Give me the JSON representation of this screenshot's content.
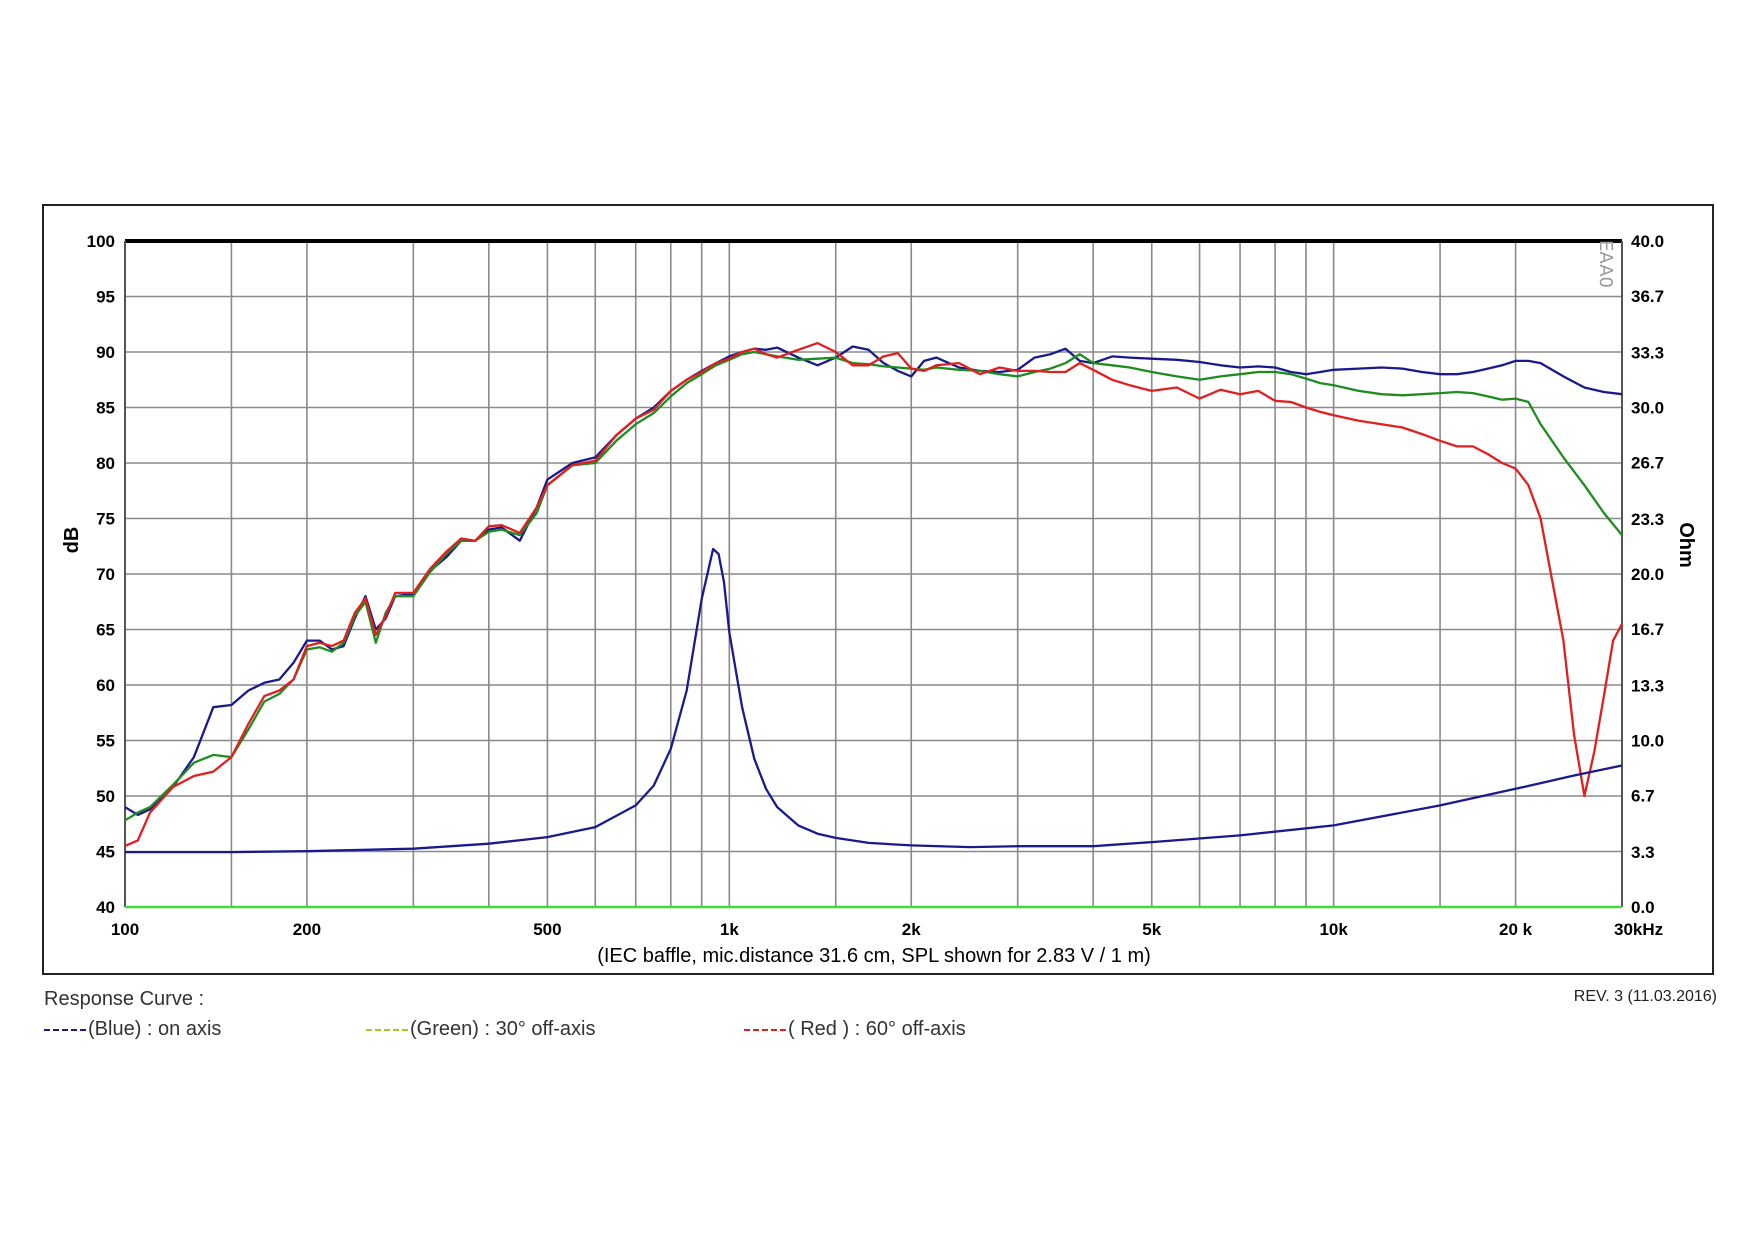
{
  "chart_data": {
    "type": "line",
    "x_scale": "log",
    "xlim": [
      100,
      30000
    ],
    "ylim": [
      40,
      100
    ],
    "y2lim": [
      0,
      40
    ],
    "ylabel": "dB",
    "y2label": "Ohm",
    "xlabel": "(IEC baffle, mic.distance 31.6 cm, SPL shown for 2.83 V / 1 m)",
    "watermark": "EAA0",
    "grid": true,
    "y_ticks": [
      "40",
      "45",
      "50",
      "55",
      "60",
      "65",
      "70",
      "75",
      "80",
      "85",
      "90",
      "95",
      "100"
    ],
    "y2_ticks": [
      "0.0",
      "3.3",
      "6.7",
      "10.0",
      "13.3",
      "16.7",
      "20.0",
      "23.3",
      "26.7",
      "30.0",
      "33.3",
      "36.7",
      "40.0"
    ],
    "x_ticks": [
      {
        "value": 100,
        "label": "100"
      },
      {
        "value": 200,
        "label": "200"
      },
      {
        "value": 500,
        "label": "500"
      },
      {
        "value": 1000,
        "label": "1k"
      },
      {
        "value": 2000,
        "label": "2k"
      },
      {
        "value": 5000,
        "label": "5k"
      },
      {
        "value": 10000,
        "label": "10k"
      },
      {
        "value": 20000,
        "label": "20 k"
      },
      {
        "value": 30000,
        "label": "30kHz"
      }
    ],
    "x_gridlines": [
      100,
      150,
      200,
      300,
      400,
      500,
      600,
      700,
      800,
      900,
      1000,
      1500,
      2000,
      3000,
      4000,
      5000,
      6000,
      7000,
      8000,
      9000,
      10000,
      15000,
      20000,
      30000
    ],
    "series": [
      {
        "name": "(Blue)  : on axis",
        "color": "#1a1a8c",
        "axis": "left",
        "x": [
          100,
          105,
          110,
          120,
          130,
          140,
          150,
          160,
          170,
          180,
          190,
          200,
          210,
          220,
          230,
          240,
          250,
          260,
          270,
          280,
          300,
          320,
          340,
          360,
          380,
          400,
          420,
          450,
          480,
          500,
          550,
          600,
          650,
          700,
          750,
          800,
          850,
          900,
          950,
          1000,
          1050,
          1100,
          1150,
          1200,
          1300,
          1400,
          1500,
          1600,
          1700,
          1800,
          1900,
          2000,
          2100,
          2200,
          2400,
          2600,
          2800,
          3000,
          3200,
          3400,
          3600,
          3800,
          4000,
          4300,
          4600,
          5000,
          5500,
          6000,
          6500,
          7000,
          7500,
          8000,
          8500,
          9000,
          9500,
          10000,
          11000,
          12000,
          13000,
          14000,
          15000,
          16000,
          17000,
          18000,
          19000,
          20000,
          21000,
          22000,
          24000,
          26000,
          28000,
          30000
        ],
        "values": [
          49.0,
          48.3,
          48.8,
          50.8,
          53.5,
          58.0,
          58.2,
          59.5,
          60.2,
          60.5,
          62.0,
          64.0,
          64.0,
          63.2,
          63.5,
          66.0,
          68.0,
          65.0,
          66.0,
          68.0,
          68.2,
          70.3,
          71.5,
          73.0,
          73.0,
          74.0,
          74.2,
          73.0,
          76.0,
          78.5,
          80.0,
          80.5,
          82.5,
          84.0,
          85.0,
          86.5,
          87.5,
          88.3,
          89.0,
          89.6,
          90.0,
          90.3,
          90.2,
          90.4,
          89.5,
          88.8,
          89.5,
          90.5,
          90.2,
          89.0,
          88.3,
          87.8,
          89.2,
          89.5,
          88.6,
          88.3,
          88.2,
          88.4,
          89.5,
          89.8,
          90.3,
          89.2,
          89.0,
          89.6,
          89.5,
          89.4,
          89.3,
          89.1,
          88.8,
          88.6,
          88.7,
          88.6,
          88.2,
          88.0,
          88.2,
          88.4,
          88.5,
          88.6,
          88.5,
          88.2,
          88.0,
          88.0,
          88.2,
          88.5,
          88.8,
          89.2,
          89.2,
          89.0,
          87.8,
          86.8,
          86.4,
          86.2
        ]
      },
      {
        "name": "(Green) : 30° off-axis",
        "color": "#1f8c1f",
        "axis": "left",
        "x": [
          100,
          105,
          110,
          120,
          130,
          140,
          150,
          160,
          170,
          180,
          190,
          200,
          210,
          220,
          230,
          240,
          250,
          260,
          270,
          280,
          300,
          320,
          340,
          360,
          380,
          400,
          420,
          450,
          480,
          500,
          550,
          600,
          650,
          700,
          750,
          800,
          850,
          900,
          950,
          1000,
          1050,
          1100,
          1150,
          1200,
          1300,
          1400,
          1500,
          1600,
          1700,
          1800,
          1900,
          2000,
          2100,
          2200,
          2400,
          2600,
          2800,
          3000,
          3200,
          3400,
          3600,
          3800,
          4000,
          4300,
          4600,
          5000,
          5500,
          6000,
          6500,
          7000,
          7500,
          8000,
          8500,
          9000,
          9500,
          10000,
          11000,
          12000,
          13000,
          14000,
          15000,
          16000,
          17000,
          18000,
          19000,
          20000,
          21000,
          22000,
          24000,
          26000,
          28000,
          30000
        ],
        "values": [
          47.8,
          48.5,
          49.0,
          51.0,
          53.0,
          53.7,
          53.5,
          56.0,
          58.5,
          59.2,
          60.5,
          63.2,
          63.4,
          63.0,
          63.8,
          66.2,
          67.5,
          63.8,
          66.5,
          68.0,
          68.0,
          70.2,
          71.8,
          73.0,
          73.0,
          73.8,
          74.0,
          73.5,
          75.5,
          78.0,
          79.8,
          80.0,
          82.0,
          83.5,
          84.5,
          86.0,
          87.2,
          88.0,
          88.8,
          89.3,
          89.8,
          90.0,
          89.8,
          89.6,
          89.3,
          89.4,
          89.5,
          89.0,
          88.9,
          88.7,
          88.6,
          88.5,
          88.4,
          88.6,
          88.4,
          88.3,
          88.0,
          87.8,
          88.2,
          88.5,
          89.0,
          89.8,
          89.0,
          88.8,
          88.6,
          88.2,
          87.8,
          87.5,
          87.8,
          88.0,
          88.2,
          88.2,
          88.0,
          87.6,
          87.2,
          87.0,
          86.5,
          86.2,
          86.1,
          86.2,
          86.3,
          86.4,
          86.3,
          86.0,
          85.7,
          85.8,
          85.5,
          83.5,
          80.5,
          78.0,
          75.5,
          73.5
        ]
      },
      {
        "name": "( Red ) : 60° off-axis",
        "color": "#e02020",
        "axis": "left",
        "x": [
          100,
          105,
          110,
          120,
          130,
          140,
          150,
          160,
          170,
          180,
          190,
          200,
          210,
          220,
          230,
          240,
          250,
          260,
          270,
          280,
          300,
          320,
          340,
          360,
          380,
          400,
          420,
          450,
          480,
          500,
          550,
          600,
          650,
          700,
          750,
          800,
          850,
          900,
          950,
          1000,
          1050,
          1100,
          1150,
          1200,
          1300,
          1400,
          1500,
          1600,
          1700,
          1800,
          1900,
          2000,
          2100,
          2200,
          2400,
          2600,
          2800,
          3000,
          3200,
          3400,
          3600,
          3800,
          4000,
          4300,
          4600,
          5000,
          5500,
          6000,
          6500,
          7000,
          7500,
          8000,
          8500,
          9000,
          9500,
          10000,
          11000,
          12000,
          13000,
          14000,
          15000,
          16000,
          17000,
          18000,
          19000,
          20000,
          21000,
          22000,
          24000,
          25000,
          26000,
          27000,
          28000,
          29000,
          30000
        ],
        "values": [
          45.5,
          46.0,
          48.5,
          50.8,
          51.8,
          52.2,
          53.5,
          56.5,
          59.0,
          59.5,
          60.5,
          63.5,
          63.8,
          63.5,
          64.0,
          66.5,
          67.8,
          64.5,
          66.2,
          68.3,
          68.3,
          70.5,
          72.0,
          73.2,
          73.0,
          74.3,
          74.4,
          73.7,
          76.0,
          78.0,
          79.8,
          80.2,
          82.5,
          84.0,
          84.8,
          86.5,
          87.5,
          88.2,
          89.0,
          89.4,
          90.0,
          90.3,
          89.8,
          89.5,
          90.2,
          90.8,
          90.0,
          88.8,
          88.8,
          89.6,
          89.9,
          88.5,
          88.3,
          88.8,
          89.0,
          88.0,
          88.6,
          88.3,
          88.3,
          88.2,
          88.2,
          89.0,
          88.4,
          87.5,
          87.0,
          86.5,
          86.8,
          85.8,
          86.6,
          86.2,
          86.5,
          85.6,
          85.5,
          85.0,
          84.6,
          84.3,
          83.8,
          83.5,
          83.2,
          82.6,
          82.0,
          81.5,
          81.5,
          80.8,
          80.0,
          79.5,
          78.0,
          75.0,
          64.0,
          55.5,
          50.0,
          54.0,
          59.0,
          64.0,
          65.5
        ]
      },
      {
        "name": "Impedance",
        "color": "#1a1a8c",
        "axis": "right",
        "x": [
          100,
          150,
          200,
          300,
          400,
          500,
          600,
          700,
          750,
          800,
          850,
          900,
          940,
          960,
          980,
          1000,
          1050,
          1100,
          1150,
          1200,
          1300,
          1400,
          1500,
          1700,
          2000,
          2500,
          3000,
          4000,
          5000,
          7000,
          10000,
          15000,
          20000,
          25000,
          30000
        ],
        "values": [
          3.3,
          3.3,
          3.35,
          3.5,
          3.8,
          4.2,
          4.8,
          6.1,
          7.3,
          9.5,
          13.0,
          18.5,
          21.5,
          21.2,
          19.5,
          16.5,
          12.0,
          8.9,
          7.1,
          6.0,
          4.9,
          4.4,
          4.15,
          3.85,
          3.7,
          3.6,
          3.65,
          3.65,
          3.9,
          4.3,
          4.9,
          6.1,
          7.1,
          7.9,
          8.5
        ]
      }
    ],
    "baseline": {
      "color": "#3fdc3f",
      "value": 40
    }
  },
  "legend": {
    "title": "Response Curve :",
    "items": [
      {
        "label": "(Blue)  : on axis",
        "color": "#1a1a8c"
      },
      {
        "label": "(Green) : 30° off-axis",
        "color": "#a6c72a"
      },
      {
        "label": "( Red ) : 60° off-axis",
        "color": "#e02020"
      }
    ]
  },
  "revision": "REV. 3 (11.03.2016)"
}
